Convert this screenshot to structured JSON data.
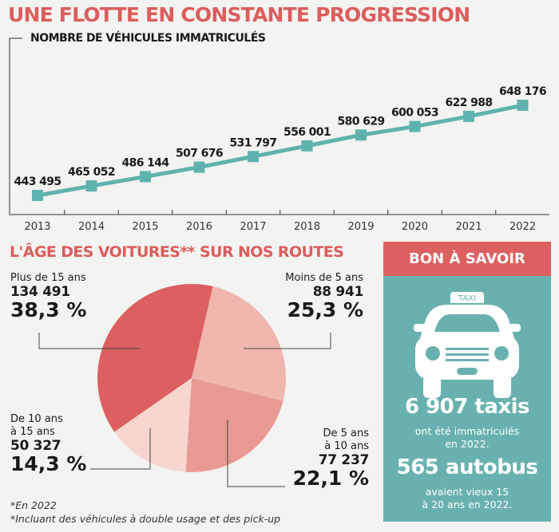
{
  "title": "UNE FLOTTE EN CONSTANTE PROGRESSION",
  "chart_data": [
    {
      "type": "line",
      "title": "NOMBRE DE VÉHICULES IMMATRICULÉS",
      "x": [
        "2013",
        "2014",
        "2015",
        "2016",
        "2017",
        "2018",
        "2019",
        "2020",
        "2021",
        "2022"
      ],
      "values": [
        443495,
        465052,
        486144,
        507676,
        531797,
        556001,
        580629,
        600053,
        622988,
        648176
      ],
      "data_labels": [
        "443 495",
        "465 052",
        "486 144",
        "507 676",
        "531 797",
        "556 001",
        "580 629",
        "600 053",
        "622 988",
        "648 176"
      ],
      "color": "#5fb3ae",
      "grid": false
    },
    {
      "type": "pie",
      "title": "L'ÂGE DES VOITURES** SUR NOS ROUTES",
      "slices": [
        {
          "label": "Moins de 5 ans",
          "count": "88 941",
          "percent": 25.3,
          "percent_label": "25,3 %",
          "color": "#f0b6ae"
        },
        {
          "label": "De 5 ans à 10 ans",
          "label_lines": [
            "De 5 ans",
            "à 10 ans"
          ],
          "count": "77 237",
          "percent": 22.1,
          "percent_label": "22,1 %",
          "color": "#e99a92"
        },
        {
          "label": "De 10 ans à 15 ans",
          "label_lines": [
            "De 10 ans",
            "à 15 ans"
          ],
          "count": "50 327",
          "percent": 14.3,
          "percent_label": "14,3 %",
          "color": "#f6d6cf"
        },
        {
          "label": "Plus de 15 ans",
          "count": "134 491",
          "percent": 38.3,
          "percent_label": "38,3 %",
          "color": "#dc6061"
        }
      ]
    }
  ],
  "footnotes": [
    "*En 2022",
    "*Incluant des véhicules à double usage et des pick-up"
  ],
  "panel": {
    "header": "BON À SAVOIR",
    "taxi_sign": "TAXI",
    "stat1": "6 907 taxis",
    "stat1_text": [
      "ont été immatriculés",
      "en 2022."
    ],
    "stat2": "565 autobus",
    "stat2_text": [
      "avaient vieux 15",
      "à 20 ans en 2022."
    ],
    "colors": {
      "header": "#dc6060",
      "body": "#69b1ae"
    }
  }
}
